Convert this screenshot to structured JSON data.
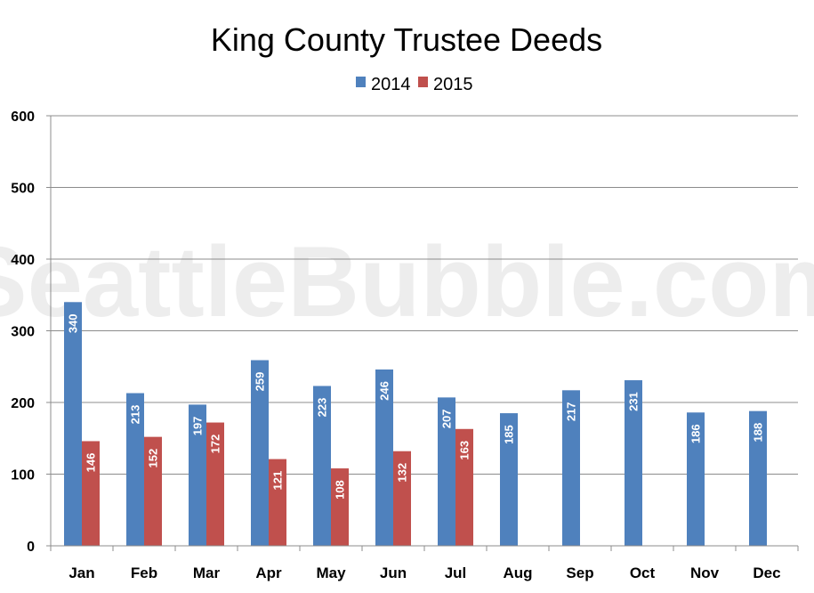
{
  "chart_data": {
    "type": "bar",
    "title": "King County Trustee Deeds",
    "watermark": "SeattleBubble.com",
    "categories": [
      "Jan",
      "Feb",
      "Mar",
      "Apr",
      "May",
      "Jun",
      "Jul",
      "Aug",
      "Sep",
      "Oct",
      "Nov",
      "Dec"
    ],
    "series": [
      {
        "name": "2014",
        "color": "#4f81bd",
        "values": [
          340,
          213,
          197,
          259,
          223,
          246,
          207,
          185,
          217,
          231,
          186,
          188
        ],
        "labels": [
          "340",
          "213",
          "197",
          "259",
          "223",
          "246",
          "207",
          "185",
          "217",
          "231",
          "186",
          "188"
        ]
      },
      {
        "name": "2015",
        "color": "#c0504d",
        "values": [
          146,
          152,
          172,
          121,
          108,
          132,
          163,
          null,
          null,
          null,
          null,
          null
        ],
        "labels": [
          "146",
          "152",
          "172",
          "121",
          "108",
          "132",
          "163",
          "",
          "",
          "",
          "",
          ""
        ]
      }
    ],
    "ylim": [
      0,
      600
    ],
    "yticks": [
      "0",
      "100",
      "200",
      "300",
      "400",
      "500",
      "600"
    ],
    "ytick_values": [
      0,
      100,
      200,
      300,
      400,
      500,
      600
    ],
    "grid": true,
    "legend_position": "top"
  }
}
